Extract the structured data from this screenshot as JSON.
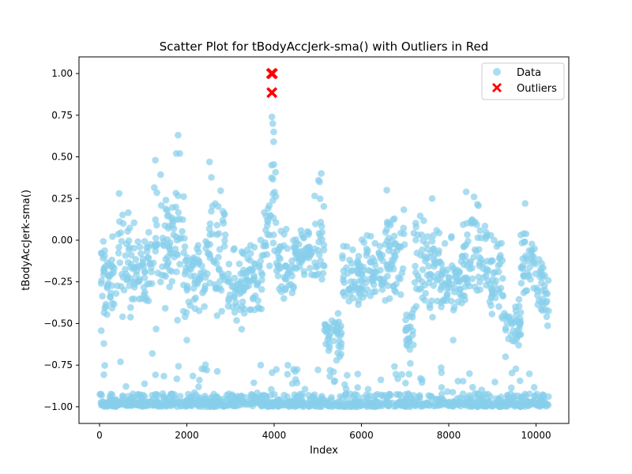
{
  "chart_data": {
    "type": "scatter",
    "title": "Scatter Plot for tBodyAccJerk-sma() with Outliers in Red",
    "xlabel": "Index",
    "ylabel": "tBodyAccJerk-sma()",
    "xlim": [
      -470,
      10750
    ],
    "ylim": [
      -1.1,
      1.1
    ],
    "xticks": [
      0,
      2000,
      4000,
      6000,
      8000,
      10000
    ],
    "xtick_labels": [
      "0",
      "2000",
      "4000",
      "6000",
      "8000",
      "10000"
    ],
    "yticks": [
      -1.0,
      -0.75,
      -0.5,
      -0.25,
      0.0,
      0.25,
      0.5,
      0.75,
      1.0
    ],
    "ytick_labels": [
      "−1.00",
      "−0.75",
      "−0.50",
      "−0.25",
      "0.00",
      "0.25",
      "0.50",
      "0.75",
      "1.00"
    ],
    "grid": false,
    "legend_position": "top-right",
    "series": [
      {
        "name": "Data",
        "marker": "circle",
        "color": "#87CEEB",
        "segments": [
          {
            "x0": 0,
            "x1": 420,
            "lo": -0.62,
            "hi": 0.1
          },
          {
            "x0": 420,
            "x1": 800,
            "lo": -0.58,
            "hi": 0.28
          },
          {
            "x0": 800,
            "x1": 1200,
            "lo": -0.45,
            "hi": 0.15
          },
          {
            "x0": 1200,
            "x1": 1600,
            "lo": -0.62,
            "hi": 0.48
          },
          {
            "x0": 1600,
            "x1": 1950,
            "lo": -0.55,
            "hi": 0.63
          },
          {
            "x0": 1950,
            "x1": 2450,
            "lo": -0.55,
            "hi": 0.1
          },
          {
            "x0": 2450,
            "x1": 2900,
            "lo": -0.5,
            "hi": 0.47
          },
          {
            "x0": 2900,
            "x1": 3400,
            "lo": -0.6,
            "hi": 0.05
          },
          {
            "x0": 3400,
            "x1": 3750,
            "lo": -0.48,
            "hi": 0.05
          },
          {
            "x0": 3750,
            "x1": 3900,
            "lo": -0.38,
            "hi": 0.45
          },
          {
            "x0": 3900,
            "x1": 4050,
            "lo": -0.18,
            "hi": 0.74
          },
          {
            "x0": 4050,
            "x1": 4450,
            "lo": -0.48,
            "hi": 0.12
          },
          {
            "x0": 4450,
            "x1": 4900,
            "lo": -0.25,
            "hi": 0.1
          },
          {
            "x0": 4900,
            "x1": 5150,
            "lo": -0.45,
            "hi": 0.4
          },
          {
            "x0": 5150,
            "x1": 5550,
            "lo": -0.79,
            "hi": -0.4
          },
          {
            "x0": 5550,
            "x1": 6000,
            "lo": -0.5,
            "hi": 0.02
          },
          {
            "x0": 6000,
            "x1": 6500,
            "lo": -0.5,
            "hi": 0.12
          },
          {
            "x0": 6500,
            "x1": 7000,
            "lo": -0.5,
            "hi": 0.3
          },
          {
            "x0": 7000,
            "x1": 7200,
            "lo": -0.75,
            "hi": -0.35
          },
          {
            "x0": 7200,
            "x1": 7800,
            "lo": -0.58,
            "hi": 0.25
          },
          {
            "x0": 7800,
            "x1": 8300,
            "lo": -0.58,
            "hi": 0.05
          },
          {
            "x0": 8300,
            "x1": 8900,
            "lo": -0.45,
            "hi": 0.29
          },
          {
            "x0": 8900,
            "x1": 9300,
            "lo": -0.6,
            "hi": 0.12
          },
          {
            "x0": 9300,
            "x1": 9650,
            "lo": -0.7,
            "hi": -0.28
          },
          {
            "x0": 9650,
            "x1": 10000,
            "lo": -0.45,
            "hi": 0.22
          },
          {
            "x0": 10000,
            "x1": 10299,
            "lo": -0.58,
            "hi": -0.05
          }
        ],
        "floor": {
          "y": -1.0,
          "spread": 0.08,
          "sparse_hi": -0.74
        },
        "extra_points": [
          {
            "x": 1800,
            "y": 0.63
          },
          {
            "x": 2520,
            "y": 0.47
          },
          {
            "x": 6580,
            "y": 0.3
          },
          {
            "x": 3950,
            "y": 0.74
          },
          {
            "x": 3970,
            "y": 0.7
          },
          {
            "x": 3990,
            "y": 0.65
          },
          {
            "x": 1280,
            "y": 0.48
          },
          {
            "x": 1760,
            "y": 0.52
          },
          {
            "x": 1840,
            "y": 0.52
          },
          {
            "x": 5080,
            "y": 0.4
          },
          {
            "x": 5040,
            "y": 0.35
          },
          {
            "x": 450,
            "y": 0.28
          },
          {
            "x": 8580,
            "y": 0.26
          },
          {
            "x": 8400,
            "y": 0.29
          },
          {
            "x": 9750,
            "y": 0.22
          },
          {
            "x": 7620,
            "y": 0.25
          },
          {
            "x": 5360,
            "y": -0.79
          },
          {
            "x": 9300,
            "y": -0.7
          },
          {
            "x": 480,
            "y": -0.73
          },
          {
            "x": 100,
            "y": -0.62
          },
          {
            "x": 1210,
            "y": -0.68
          },
          {
            "x": 7120,
            "y": -0.74
          },
          {
            "x": 2000,
            "y": -0.6
          },
          {
            "x": 8100,
            "y": -0.6
          }
        ]
      },
      {
        "name": "Outliers",
        "marker": "x",
        "color": "#FF0000",
        "points": [
          {
            "x": 3940,
            "y": 1.0
          },
          {
            "x": 3960,
            "y": 1.0
          },
          {
            "x": 3950,
            "y": 0.885
          }
        ]
      }
    ]
  }
}
